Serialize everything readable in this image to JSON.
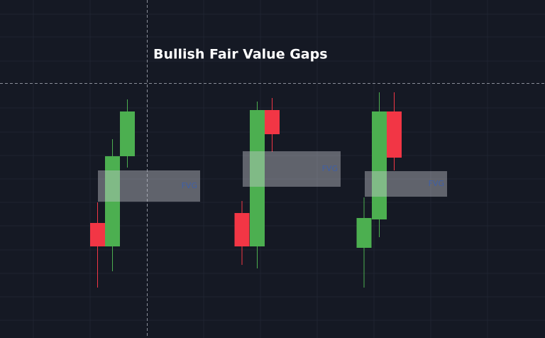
{
  "chart_data": {
    "type": "candlestick",
    "title": "Bullish Fair Value Gaps",
    "ylim": [
      0,
      476
    ],
    "candles": [
      {
        "open": 162,
        "high": 191,
        "low": 71,
        "close": 129,
        "color": "#f23645"
      },
      {
        "open": 129,
        "high": 280,
        "low": 94,
        "close": 256,
        "color": "#4caf50"
      },
      {
        "open": 256,
        "high": 336,
        "low": 240,
        "close": 319,
        "color": "#4caf50"
      },
      {
        "open": 176,
        "high": 193,
        "low": 103,
        "close": 129,
        "color": "#f23645"
      },
      {
        "open": 129,
        "high": 333,
        "low": 98,
        "close": 321,
        "color": "#4caf50"
      },
      {
        "open": 321,
        "high": 338,
        "low": 262,
        "close": 287,
        "color": "#f23645"
      },
      {
        "open": 127,
        "high": 198,
        "low": 71,
        "close": 169,
        "color": "#4caf50"
      },
      {
        "open": 167,
        "high": 346,
        "low": 142,
        "close": 319,
        "color": "#4caf50"
      },
      {
        "open": 319,
        "high": 346,
        "low": 236,
        "close": 254,
        "color": "#f23645"
      }
    ],
    "gaps": [
      {
        "label": "FVG",
        "low": 192,
        "high": 236
      },
      {
        "label": "FVG",
        "low": 213,
        "high": 263
      },
      {
        "label": "FVG",
        "low": 199,
        "high": 235
      }
    ]
  }
}
